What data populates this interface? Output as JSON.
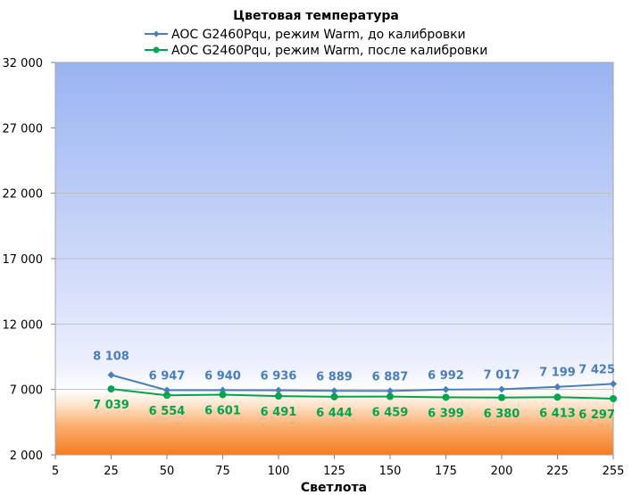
{
  "chart_data": {
    "type": "line",
    "title": "Цветовая температура",
    "xlabel": "Светлота",
    "ylabel": "",
    "x_ticks": [
      "5",
      "25",
      "50",
      "75",
      "100",
      "125",
      "150",
      "175",
      "200",
      "225",
      "255"
    ],
    "x": [
      25,
      50,
      75,
      100,
      125,
      150,
      175,
      200,
      225,
      255
    ],
    "ylim": [
      2000,
      32000
    ],
    "y_ticks": [
      "2 000",
      "7 000",
      "12 000",
      "17 000",
      "22 000",
      "27 000",
      "32 000"
    ],
    "y_tick_values": [
      2000,
      7000,
      12000,
      17000,
      22000,
      27000,
      32000
    ],
    "grid": true,
    "legend_position": "top",
    "series": [
      {
        "name": "AOC G2460Pqu, режим Warm, до калибровки",
        "color": "#4a7ebb",
        "marker": "diamond",
        "values": [
          8108,
          6947,
          6940,
          6936,
          6889,
          6887,
          6992,
          7017,
          7199,
          7425
        ],
        "labels": [
          "8 108",
          "6 947",
          "6 940",
          "6 936",
          "6 889",
          "6 887",
          "6 992",
          "7 017",
          "7 199",
          "7 425"
        ]
      },
      {
        "name": "AOC G2460Pqu, режим Warm, после калибровки",
        "color": "#00a550",
        "marker": "circle",
        "values": [
          7039,
          6554,
          6601,
          6491,
          6444,
          6459,
          6399,
          6380,
          6413,
          6297
        ],
        "labels": [
          "7 039",
          "6 554",
          "6 601",
          "6 491",
          "6 444",
          "6 459",
          "6 399",
          "6 380",
          "6 413",
          "6 297"
        ]
      }
    ]
  }
}
